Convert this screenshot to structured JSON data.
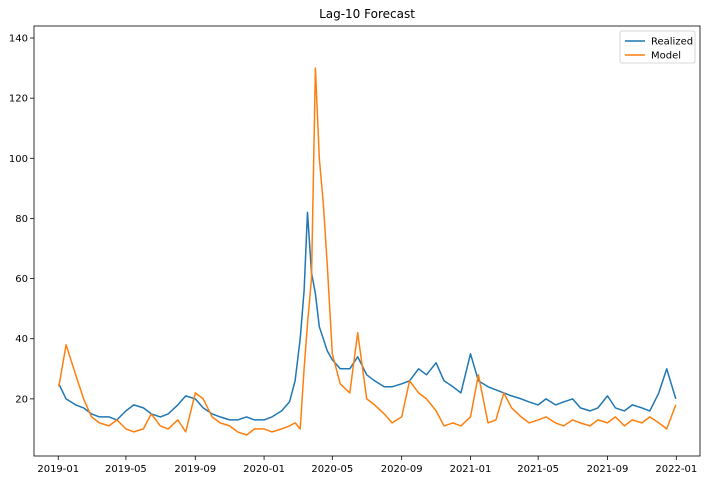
{
  "chart_data": {
    "type": "line",
    "title": "Lag-10 Forecast",
    "xlabel": "",
    "ylabel": "",
    "x_ticks": [
      "2019-01",
      "2019-05",
      "2019-09",
      "2020-01",
      "2020-05",
      "2020-09",
      "2021-01",
      "2021-05",
      "2021-09",
      "2022-01"
    ],
    "y_ticks": [
      20,
      40,
      60,
      80,
      100,
      120,
      140
    ],
    "xlim": [
      "2018-11-19",
      "2022-02-12"
    ],
    "ylim": [
      1,
      144
    ],
    "grid": false,
    "legend_position": "top-right",
    "x": [
      "2019-01-02",
      "2019-01-15",
      "2019-02-01",
      "2019-02-15",
      "2019-03-01",
      "2019-03-15",
      "2019-04-01",
      "2019-04-15",
      "2019-05-01",
      "2019-05-15",
      "2019-06-01",
      "2019-06-15",
      "2019-07-01",
      "2019-07-15",
      "2019-08-01",
      "2019-08-15",
      "2019-09-01",
      "2019-09-15",
      "2019-10-01",
      "2019-10-15",
      "2019-11-01",
      "2019-11-15",
      "2019-12-01",
      "2019-12-15",
      "2020-01-01",
      "2020-01-15",
      "2020-02-01",
      "2020-02-15",
      "2020-02-25",
      "2020-03-05",
      "2020-03-12",
      "2020-03-18",
      "2020-03-25",
      "2020-04-01",
      "2020-04-08",
      "2020-04-15",
      "2020-04-22",
      "2020-05-01",
      "2020-05-15",
      "2020-06-01",
      "2020-06-15",
      "2020-07-01",
      "2020-07-15",
      "2020-08-01",
      "2020-08-15",
      "2020-09-01",
      "2020-09-15",
      "2020-10-01",
      "2020-10-15",
      "2020-11-01",
      "2020-11-15",
      "2020-12-01",
      "2020-12-15",
      "2021-01-01",
      "2021-01-15",
      "2021-02-01",
      "2021-02-15",
      "2021-03-01",
      "2021-03-15",
      "2021-04-01",
      "2021-04-15",
      "2021-05-01",
      "2021-05-15",
      "2021-06-01",
      "2021-06-15",
      "2021-07-01",
      "2021-07-15",
      "2021-08-01",
      "2021-08-15",
      "2021-09-01",
      "2021-09-15",
      "2021-10-01",
      "2021-10-15",
      "2021-11-01",
      "2021-11-15",
      "2021-12-01",
      "2021-12-15",
      "2021-12-31"
    ],
    "series": [
      {
        "name": "Realized",
        "color": "#1f77b4",
        "values": [
          25,
          20,
          18,
          17,
          15,
          14,
          14,
          13,
          16,
          18,
          17,
          15,
          14,
          15,
          18,
          21,
          20,
          17,
          15,
          14,
          13,
          13,
          14,
          13,
          13,
          14,
          16,
          19,
          26,
          40,
          56,
          82,
          62,
          55,
          44,
          40,
          36,
          33,
          30,
          30,
          34,
          28,
          26,
          24,
          24,
          25,
          26,
          30,
          28,
          32,
          26,
          24,
          22,
          35,
          26,
          24,
          23,
          22,
          21,
          20,
          19,
          18,
          20,
          18,
          19,
          20,
          17,
          16,
          17,
          21,
          17,
          16,
          18,
          17,
          16,
          22,
          30,
          20
        ]
      },
      {
        "name": "Model",
        "color": "#ff7f0e",
        "values": [
          24,
          38,
          28,
          20,
          14,
          12,
          11,
          13,
          10,
          9,
          10,
          15,
          11,
          10,
          13,
          9,
          22,
          20,
          14,
          12,
          11,
          9,
          8,
          10,
          10,
          9,
          10,
          11,
          12,
          10,
          30,
          45,
          60,
          130,
          100,
          85,
          65,
          35,
          25,
          22,
          42,
          20,
          18,
          15,
          12,
          14,
          26,
          22,
          20,
          16,
          11,
          12,
          11,
          14,
          28,
          12,
          13,
          22,
          17,
          14,
          12,
          13,
          14,
          12,
          11,
          13,
          12,
          11,
          13,
          12,
          14,
          11,
          13,
          12,
          14,
          12,
          10,
          18
        ]
      }
    ]
  }
}
